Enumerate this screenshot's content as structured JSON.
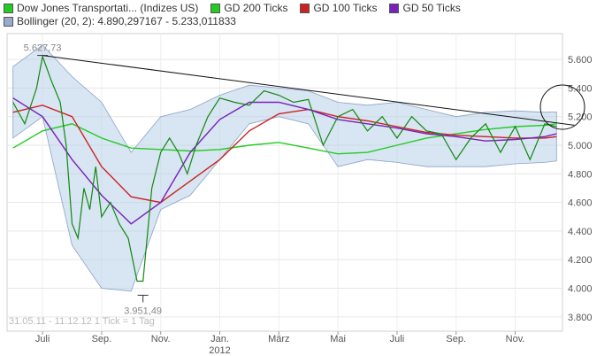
{
  "legend": [
    {
      "label": "Dow Jones Transportati... (Indizes US)",
      "color": "#22cc22"
    },
    {
      "label": "GD 200 Ticks",
      "color": "#22cc22"
    },
    {
      "label": "GD 100 Ticks",
      "color": "#cc2222"
    },
    {
      "label": "GD 50 Ticks",
      "color": "#7722bb"
    },
    {
      "label": "Bollinger (20, 2): 4.890,297167 - 5.233,011833",
      "color": "#99aacc"
    }
  ],
  "footer": "31.05.11 - 11.12.12    1 Tick = 1 Tag",
  "chart_data": {
    "type": "line",
    "y_ticks": [
      "5.600",
      "5.400",
      "5.200",
      "5.000",
      "4.800",
      "4.600",
      "4.400",
      "4.200",
      "4.000",
      "3.800"
    ],
    "y_tick_values": [
      5600,
      5400,
      5200,
      5000,
      4800,
      4600,
      4400,
      4200,
      4000,
      3800
    ],
    "ylim": [
      3700,
      5780
    ],
    "x_ticks": [
      "Juli",
      "Sep.",
      "Nov.",
      "Jan.",
      "März",
      "Mai",
      "Juli",
      "Sep.",
      "Nov."
    ],
    "x_year_label": "2012",
    "grid": true,
    "annotations": [
      {
        "text": "5.627,73",
        "value": 5627.73,
        "month": 1.0
      },
      {
        "text": "3.951,49",
        "value": 3951.49,
        "month": 4.4
      }
    ],
    "series": [
      {
        "name": "Dow Jones Transportati... (Indizes US)",
        "color": "#118811",
        "x": [
          0,
          0.4,
          0.8,
          1.0,
          1.3,
          1.6,
          1.8,
          2.0,
          2.2,
          2.4,
          2.6,
          2.8,
          3.0,
          3.3,
          3.6,
          3.9,
          4.2,
          4.4,
          4.7,
          5.0,
          5.3,
          5.6,
          5.9,
          6.2,
          6.6,
          7.0,
          7.5,
          8.0,
          8.5,
          9.0,
          9.5,
          10.0,
          10.5,
          11.0,
          11.5,
          12.0,
          12.5,
          13.0,
          13.5,
          14.0,
          14.5,
          15.0,
          15.5,
          16.0,
          16.5,
          17.0,
          17.5,
          18.0,
          18.4
        ],
        "values": [
          5300,
          5150,
          5400,
          5620,
          5450,
          5300,
          5000,
          4450,
          4350,
          4700,
          4550,
          4850,
          4500,
          4600,
          4450,
          4350,
          4050,
          4050,
          4700,
          4950,
          5050,
          4950,
          4800,
          5000,
          5200,
          5330,
          5300,
          5280,
          5380,
          5350,
          5300,
          5320,
          5000,
          5200,
          5250,
          5100,
          5200,
          5050,
          5200,
          5100,
          5080,
          4900,
          5050,
          5150,
          4950,
          5130,
          4900,
          5150,
          5130
        ]
      },
      {
        "name": "GD 200 Ticks",
        "color": "#22cc22",
        "x": [
          0,
          1,
          2,
          3,
          4,
          5,
          6,
          7,
          8,
          9,
          10,
          11,
          12,
          13,
          14,
          15,
          16,
          17,
          18,
          18.4
        ],
        "values": [
          4980,
          5100,
          5150,
          5050,
          4980,
          4970,
          4960,
          4970,
          5000,
          5020,
          4980,
          4940,
          4950,
          5000,
          5050,
          5080,
          5110,
          5130,
          5140,
          5150
        ]
      },
      {
        "name": "GD 100 Ticks",
        "color": "#cc2222",
        "x": [
          0,
          1,
          2,
          3,
          4,
          5,
          6,
          7,
          8,
          9,
          10,
          11,
          12,
          13,
          14,
          15,
          16,
          17,
          18,
          18.4
        ],
        "values": [
          5230,
          5280,
          5200,
          4850,
          4640,
          4600,
          4750,
          4900,
          5100,
          5220,
          5250,
          5200,
          5170,
          5130,
          5090,
          5070,
          5060,
          5050,
          5050,
          5060
        ]
      },
      {
        "name": "GD 50 Ticks",
        "color": "#7722bb",
        "x": [
          0,
          1,
          2,
          3,
          4,
          5,
          6,
          7,
          8,
          9,
          10,
          11,
          12,
          13,
          14,
          15,
          16,
          17,
          18,
          18.4
        ],
        "values": [
          5330,
          5200,
          4900,
          4650,
          4450,
          4600,
          4950,
          5180,
          5300,
          5300,
          5250,
          5180,
          5150,
          5120,
          5080,
          5060,
          5030,
          5040,
          5060,
          5080
        ]
      }
    ],
    "bollinger": {
      "name": "Bollinger (20, 2): 4.890,297167 - 5.233,011833",
      "color": "#b8cfe8",
      "x": [
        0,
        1,
        2,
        3,
        4,
        5,
        6,
        7,
        8,
        9,
        10,
        11,
        12,
        13,
        14,
        15,
        16,
        17,
        18,
        18.4
      ],
      "upper": [
        5550,
        5700,
        5480,
        5300,
        4950,
        5200,
        5250,
        5350,
        5420,
        5400,
        5380,
        5300,
        5280,
        5300,
        5250,
        5200,
        5230,
        5240,
        5230,
        5233
      ],
      "lower": [
        5050,
        5200,
        4300,
        4000,
        3980,
        4550,
        4650,
        4900,
        5150,
        5200,
        5150,
        4850,
        4900,
        4880,
        4850,
        4850,
        4850,
        4870,
        4880,
        4890
      ]
    },
    "trendline": {
      "color": "#111111",
      "x": [
        1.0,
        19.0
      ],
      "values": [
        5627.73,
        5140
      ]
    }
  }
}
